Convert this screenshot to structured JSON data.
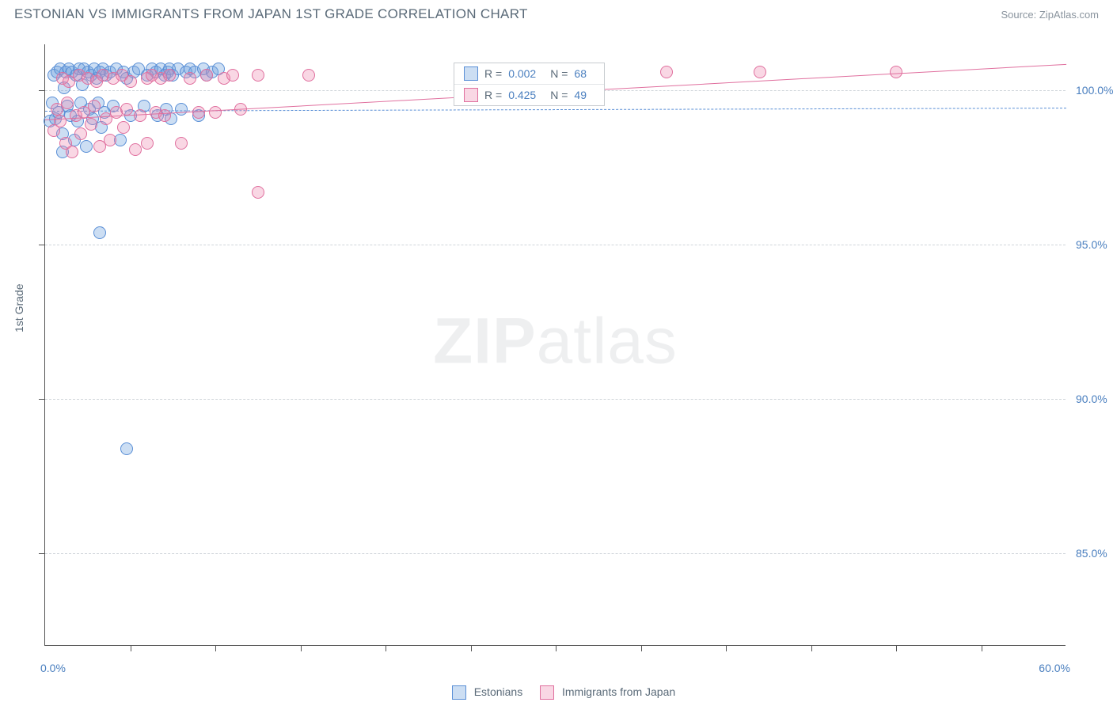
{
  "title": "ESTONIAN VS IMMIGRANTS FROM JAPAN 1ST GRADE CORRELATION CHART",
  "source": "Source: ZipAtlas.com",
  "ylabel": "1st Grade",
  "watermark": {
    "bold": "ZIP",
    "light": "atlas"
  },
  "chart": {
    "type": "scatter",
    "xlim": [
      0,
      60
    ],
    "ylim": [
      82,
      101.5
    ],
    "x_min_label": "0.0%",
    "x_max_label": "60.0%",
    "x_ticks": [
      5,
      10,
      15,
      20,
      25,
      30,
      35,
      40,
      45,
      50,
      55
    ],
    "y_ticks": [
      85,
      90,
      95,
      100
    ],
    "y_tick_labels": [
      "85.0%",
      "90.0%",
      "95.0%",
      "100.0%"
    ],
    "grid_color": "#d0d5da",
    "axis_color": "#555555",
    "background": "#ffffff",
    "label_color": "#4a7fbf",
    "marker_radius": 8,
    "marker_stroke_width": 1.5,
    "series": [
      {
        "name": "Estonians",
        "fill": "rgba(108,160,220,0.35)",
        "stroke": "#5a8fd6",
        "r_value": "0.002",
        "n_value": "68",
        "trend": {
          "x1": 0,
          "y1": 99.35,
          "x2": 60,
          "y2": 99.45,
          "dash": "6,5",
          "width": 1.6
        },
        "points": [
          [
            0.3,
            99.0
          ],
          [
            0.4,
            99.6
          ],
          [
            0.5,
            100.5
          ],
          [
            0.6,
            99.1
          ],
          [
            0.7,
            100.6
          ],
          [
            0.8,
            99.3
          ],
          [
            0.9,
            100.7
          ],
          [
            1.0,
            98.6
          ],
          [
            1.1,
            100.1
          ],
          [
            1.2,
            100.6
          ],
          [
            1.3,
            99.5
          ],
          [
            1.4,
            100.7
          ],
          [
            1.5,
            99.2
          ],
          [
            1.6,
            100.6
          ],
          [
            1.7,
            98.4
          ],
          [
            1.8,
            100.5
          ],
          [
            1.9,
            99.0
          ],
          [
            2.0,
            100.7
          ],
          [
            2.1,
            99.6
          ],
          [
            2.2,
            100.2
          ],
          [
            2.3,
            100.7
          ],
          [
            2.4,
            98.2
          ],
          [
            2.5,
            100.6
          ],
          [
            2.6,
            99.4
          ],
          [
            2.7,
            100.5
          ],
          [
            2.8,
            99.1
          ],
          [
            2.9,
            100.7
          ],
          [
            3.0,
            100.4
          ],
          [
            3.1,
            99.6
          ],
          [
            3.2,
            100.6
          ],
          [
            3.3,
            98.8
          ],
          [
            3.4,
            100.7
          ],
          [
            3.5,
            99.3
          ],
          [
            3.6,
            100.5
          ],
          [
            3.8,
            100.6
          ],
          [
            4.0,
            99.5
          ],
          [
            4.2,
            100.7
          ],
          [
            4.4,
            98.4
          ],
          [
            4.6,
            100.6
          ],
          [
            4.8,
            100.4
          ],
          [
            5.0,
            99.2
          ],
          [
            5.2,
            100.6
          ],
          [
            5.5,
            100.7
          ],
          [
            5.8,
            99.5
          ],
          [
            6.0,
            100.5
          ],
          [
            6.3,
            100.7
          ],
          [
            6.5,
            100.6
          ],
          [
            6.6,
            99.2
          ],
          [
            6.8,
            100.7
          ],
          [
            7.0,
            100.5
          ],
          [
            7.1,
            99.4
          ],
          [
            7.2,
            100.6
          ],
          [
            7.3,
            100.7
          ],
          [
            7.4,
            99.1
          ],
          [
            7.5,
            100.5
          ],
          [
            7.8,
            100.7
          ],
          [
            8.0,
            99.4
          ],
          [
            8.3,
            100.6
          ],
          [
            8.5,
            100.7
          ],
          [
            8.8,
            100.6
          ],
          [
            9.0,
            99.2
          ],
          [
            9.3,
            100.7
          ],
          [
            9.5,
            100.5
          ],
          [
            9.8,
            100.6
          ],
          [
            10.2,
            100.7
          ],
          [
            3.2,
            95.4
          ],
          [
            4.8,
            88.4
          ],
          [
            1.0,
            98.0
          ]
        ]
      },
      {
        "name": "Immigrants from Japan",
        "fill": "rgba(235,130,170,0.32)",
        "stroke": "#e06f9e",
        "r_value": "0.425",
        "n_value": "49",
        "trend": {
          "x1": 0,
          "y1": 99.05,
          "x2": 60,
          "y2": 100.85,
          "dash": "none",
          "width": 1.8
        },
        "points": [
          [
            0.5,
            98.7
          ],
          [
            0.7,
            99.4
          ],
          [
            0.9,
            99.0
          ],
          [
            1.0,
            100.4
          ],
          [
            1.2,
            98.3
          ],
          [
            1.3,
            99.6
          ],
          [
            1.4,
            100.3
          ],
          [
            1.6,
            98.0
          ],
          [
            1.8,
            99.2
          ],
          [
            2.0,
            100.5
          ],
          [
            2.1,
            98.6
          ],
          [
            2.3,
            99.3
          ],
          [
            2.5,
            100.4
          ],
          [
            2.7,
            98.9
          ],
          [
            2.9,
            99.5
          ],
          [
            3.0,
            100.3
          ],
          [
            3.2,
            98.2
          ],
          [
            3.4,
            100.5
          ],
          [
            3.6,
            99.1
          ],
          [
            3.8,
            98.4
          ],
          [
            4.0,
            100.4
          ],
          [
            4.2,
            99.3
          ],
          [
            4.5,
            100.5
          ],
          [
            4.6,
            98.8
          ],
          [
            4.8,
            99.4
          ],
          [
            5.0,
            100.3
          ],
          [
            5.3,
            98.1
          ],
          [
            5.6,
            99.2
          ],
          [
            6.0,
            100.4
          ],
          [
            6.0,
            98.3
          ],
          [
            6.3,
            100.5
          ],
          [
            6.5,
            99.3
          ],
          [
            6.8,
            100.4
          ],
          [
            7.0,
            99.2
          ],
          [
            7.3,
            100.5
          ],
          [
            8.0,
            98.3
          ],
          [
            8.5,
            100.4
          ],
          [
            9.0,
            99.3
          ],
          [
            9.5,
            100.5
          ],
          [
            10.0,
            99.3
          ],
          [
            10.5,
            100.4
          ],
          [
            11.0,
            100.5
          ],
          [
            11.5,
            99.4
          ],
          [
            12.5,
            100.5
          ],
          [
            15.5,
            100.5
          ],
          [
            12.5,
            96.7
          ],
          [
            36.5,
            100.6
          ],
          [
            42.0,
            100.6
          ],
          [
            50.0,
            100.6
          ]
        ]
      }
    ],
    "legend_bottom": [
      "Estonians",
      "Immigrants from Japan"
    ],
    "legend_top_pos": {
      "x": 24.0,
      "y_top": 100.9
    }
  }
}
